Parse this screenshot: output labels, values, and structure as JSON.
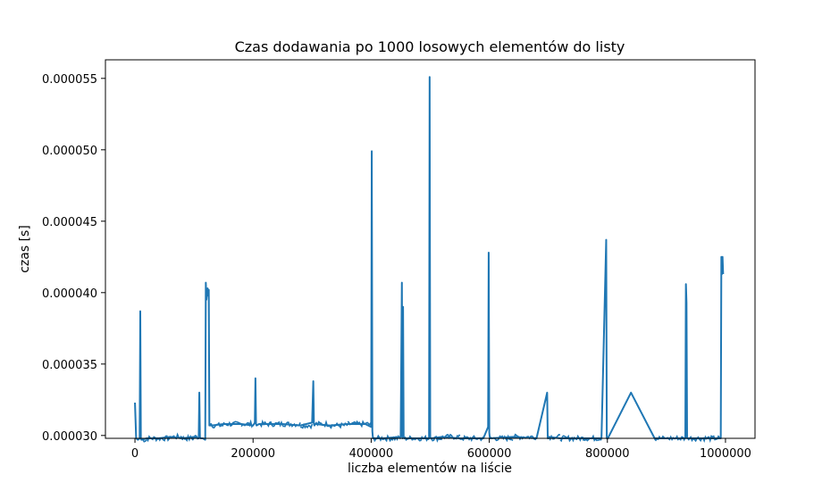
{
  "chart_data": {
    "type": "line",
    "title": "Czas dodawania po 1000 losowych elementów do listy",
    "xlabel": "liczba elementów na liście",
    "ylabel": "czas [s]",
    "xlim": [
      -50000,
      1050000
    ],
    "ylim": [
      2.98e-05,
      5.63e-05
    ],
    "x_ticks": [
      0,
      200000,
      400000,
      600000,
      800000,
      1000000
    ],
    "x_tick_labels": [
      "0",
      "200000",
      "400000",
      "600000",
      "800000",
      "1000000"
    ],
    "y_ticks": [
      3e-05,
      3.5e-05,
      4e-05,
      4.5e-05,
      5e-05,
      5.5e-05
    ],
    "y_tick_labels": [
      "0.000030",
      "0.000035",
      "0.000040",
      "0.000045",
      "0.000050",
      "0.000055"
    ],
    "grid": false,
    "line_color": "#1f77b4",
    "series": [
      {
        "x": [
          0,
          2000,
          5000,
          8000,
          9000,
          10000,
          11000,
          20000,
          40000,
          60000,
          80000,
          100000,
          108000,
          109000,
          110000,
          111000,
          115000,
          119000,
          120000,
          121000,
          123000,
          124000,
          125000,
          126000,
          127000,
          128000,
          129000,
          130000,
          150000,
          180000,
          200000,
          203000,
          204000,
          205000,
          206000,
          210000,
          250000,
          280000,
          300000,
          302000,
          303000,
          304000,
          305000,
          330000,
          360000,
          390000,
          400000,
          401000,
          402000,
          403000,
          404000,
          420000,
          450000,
          452000,
          453000,
          454000,
          455000,
          456000,
          457000,
          470000,
          498000,
          499000,
          500000,
          501000,
          502000,
          520000,
          550000,
          590000,
          598000,
          599000,
          600000,
          601000,
          602000,
          640000,
          680000,
          698000,
          699000,
          700000,
          701000,
          720000,
          760000,
          790000,
          798000,
          799000,
          800000,
          801000,
          802000,
          840000,
          880000,
          898000,
          899000,
          900000,
          901000,
          920000,
          932000,
          933000,
          934000,
          935000,
          936000,
          937000,
          960000,
          990000,
          992000,
          993000,
          994000,
          995000,
          996000
        ],
        "y": [
          3.23e-05,
          2.98e-05,
          2.97e-05,
          2.98e-05,
          3.87e-05,
          2.98e-05,
          2.97e-05,
          2.98e-05,
          2.98e-05,
          2.99e-05,
          2.98e-05,
          2.99e-05,
          2.98e-05,
          3.3e-05,
          2.99e-05,
          2.98e-05,
          2.98e-05,
          2.97e-05,
          4.07e-05,
          3.95e-05,
          4.03e-05,
          3.98e-05,
          4.02e-05,
          3.07e-05,
          3.08e-05,
          3.07e-05,
          3.08e-05,
          3.07e-05,
          3.08e-05,
          3.08e-05,
          3.07e-05,
          3.09e-05,
          3.4e-05,
          3.08e-05,
          3.07e-05,
          3.08e-05,
          3.08e-05,
          3.07e-05,
          3.09e-05,
          3.38e-05,
          3.08e-05,
          3.07e-05,
          3.08e-05,
          3.07e-05,
          3.08e-05,
          3.08e-05,
          3.06e-05,
          4.99e-05,
          3.03e-05,
          2.98e-05,
          2.98e-05,
          2.98e-05,
          2.99e-05,
          4.07e-05,
          2.98e-05,
          3.9e-05,
          2.99e-05,
          2.98e-05,
          2.98e-05,
          2.98e-05,
          2.98e-05,
          5.51e-05,
          2.99e-05,
          2.98e-05,
          2.98e-05,
          2.99e-05,
          2.98e-05,
          2.98e-05,
          3.06e-05,
          4.28e-05,
          3.02e-05,
          2.98e-05,
          2.98e-05,
          2.99e-05,
          2.98e-05,
          3.3e-05,
          2.98e-05,
          2.98e-05,
          2.99e-05,
          2.98e-05,
          2.98e-05,
          2.98e-05,
          4.37e-05,
          2.98e-05,
          2.98e-05,
          2.98e-05,
          2.99e-05,
          3.3e-05,
          2.98e-05,
          2.98e-05,
          2.98e-05,
          2.98e-05,
          2.98e-05,
          2.98e-05,
          2.98e-05,
          4.06e-05,
          3.93e-05,
          2.98e-05,
          2.98e-05,
          2.98e-05,
          2.98e-05,
          2.98e-05,
          2.98e-05,
          4.25e-05,
          4.13e-05,
          4.25e-05,
          4.13e-05
        ]
      }
    ]
  }
}
